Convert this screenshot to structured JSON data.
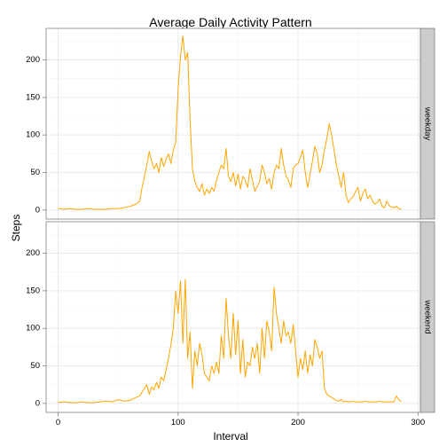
{
  "chart_data": {
    "type": "line",
    "title": "Average Daily Activity Pattern",
    "xlabel": "Interval",
    "ylabel": "Steps",
    "x_ticks": [
      0,
      100,
      200,
      300
    ],
    "xlim": [
      -10,
      302
    ],
    "ylim": [
      -12,
      242
    ],
    "y_ticks": [
      0,
      50,
      100,
      150,
      200
    ],
    "grid": true,
    "line_color": "#FFA500",
    "panels": [
      {
        "strip": "weekday",
        "series": [
          {
            "x": [
              0,
              5,
              10,
              15,
              20,
              25,
              30,
              35,
              40,
              45,
              50,
              55,
              60,
              65,
              68,
              70,
              72,
              74,
              76,
              78,
              80,
              82,
              84,
              86,
              88,
              90,
              92,
              94,
              96,
              98,
              100,
              102,
              104,
              106,
              108,
              110,
              112,
              114,
              116,
              118,
              120,
              122,
              124,
              126,
              128,
              130,
              132,
              134,
              136,
              138,
              140,
              142,
              144,
              146,
              148,
              150,
              152,
              154,
              156,
              158,
              160,
              162,
              164,
              166,
              168,
              170,
              172,
              174,
              176,
              178,
              180,
              182,
              184,
              186,
              188,
              190,
              192,
              194,
              196,
              198,
              200,
              202,
              204,
              206,
              208,
              210,
              212,
              214,
              216,
              218,
              220,
              222,
              224,
              226,
              228,
              230,
              232,
              234,
              236,
              238,
              240,
              242,
              244,
              246,
              248,
              250,
              252,
              254,
              256,
              258,
              260,
              262,
              264,
              266,
              268,
              270,
              272,
              274,
              276,
              278,
              280,
              282,
              284,
              286
            ],
            "y": [
              2,
              1,
              2,
              1,
              1,
              2,
              1,
              1,
              1,
              2,
              2,
              3,
              5,
              8,
              12,
              30,
              45,
              60,
              78,
              65,
              55,
              62,
              50,
              70,
              58,
              68,
              75,
              62,
              80,
              90,
              160,
              205,
              232,
              200,
              210,
              120,
              55,
              38,
              30,
              25,
              35,
              20,
              28,
              22,
              30,
              25,
              40,
              50,
              60,
              55,
              82,
              45,
              38,
              50,
              32,
              48,
              28,
              45,
              40,
              30,
              55,
              40,
              25,
              32,
              38,
              60,
              50,
              35,
              42,
              28,
              50,
              60,
              55,
              82,
              60,
              45,
              40,
              30,
              55,
              60,
              62,
              70,
              80,
              50,
              30,
              48,
              65,
              85,
              75,
              50,
              60,
              80,
              95,
              115,
              100,
              80,
              60,
              45,
              30,
              50,
              20,
              10,
              15,
              18,
              25,
              30,
              12,
              22,
              28,
              15,
              20,
              12,
              8,
              10,
              15,
              5,
              3,
              12,
              6,
              4,
              3,
              5,
              2,
              1
            ]
          }
        ]
      },
      {
        "strip": "weekend",
        "series": [
          {
            "x": [
              0,
              5,
              10,
              15,
              20,
              25,
              30,
              35,
              40,
              45,
              50,
              55,
              60,
              65,
              68,
              70,
              72,
              74,
              76,
              78,
              80,
              82,
              84,
              86,
              88,
              90,
              92,
              94,
              96,
              98,
              100,
              102,
              104,
              106,
              108,
              110,
              112,
              114,
              116,
              118,
              120,
              122,
              124,
              126,
              128,
              130,
              132,
              134,
              136,
              138,
              140,
              142,
              144,
              146,
              148,
              150,
              152,
              154,
              156,
              158,
              160,
              162,
              164,
              166,
              168,
              170,
              172,
              174,
              176,
              178,
              180,
              182,
              184,
              186,
              188,
              190,
              192,
              194,
              196,
              198,
              200,
              202,
              204,
              206,
              208,
              210,
              212,
              214,
              216,
              218,
              220,
              222,
              224,
              226,
              228,
              230,
              232,
              234,
              236,
              238,
              240,
              242,
              244,
              246,
              248,
              250,
              252,
              254,
              256,
              258,
              260,
              262,
              264,
              266,
              268,
              270,
              272,
              274,
              276,
              278,
              280,
              282,
              284,
              286
            ],
            "y": [
              1,
              2,
              1,
              1,
              2,
              1,
              1,
              2,
              3,
              2,
              5,
              3,
              4,
              8,
              10,
              15,
              20,
              25,
              12,
              22,
              18,
              28,
              20,
              35,
              30,
              45,
              60,
              78,
              100,
              150,
              120,
              163,
              80,
              165,
              60,
              95,
              20,
              70,
              50,
              80,
              65,
              40,
              35,
              30,
              50,
              40,
              55,
              40,
              90,
              60,
              140,
              90,
              60,
              120,
              65,
              110,
              40,
              85,
              35,
              55,
              50,
              75,
              60,
              80,
              40,
              100,
              60,
              110,
              95,
              70,
              155,
              120,
              100,
              80,
              110,
              90,
              95,
              80,
              105,
              70,
              35,
              60,
              45,
              70,
              40,
              65,
              50,
              85,
              75,
              60,
              70,
              20,
              12,
              10,
              8,
              6,
              4,
              3,
              5,
              2,
              3,
              2,
              2,
              3,
              2,
              2,
              2,
              2,
              3,
              2,
              2,
              2,
              2,
              2,
              3,
              2,
              2,
              2,
              2,
              2,
              2,
              10,
              5,
              2
            ]
          }
        ]
      }
    ]
  }
}
